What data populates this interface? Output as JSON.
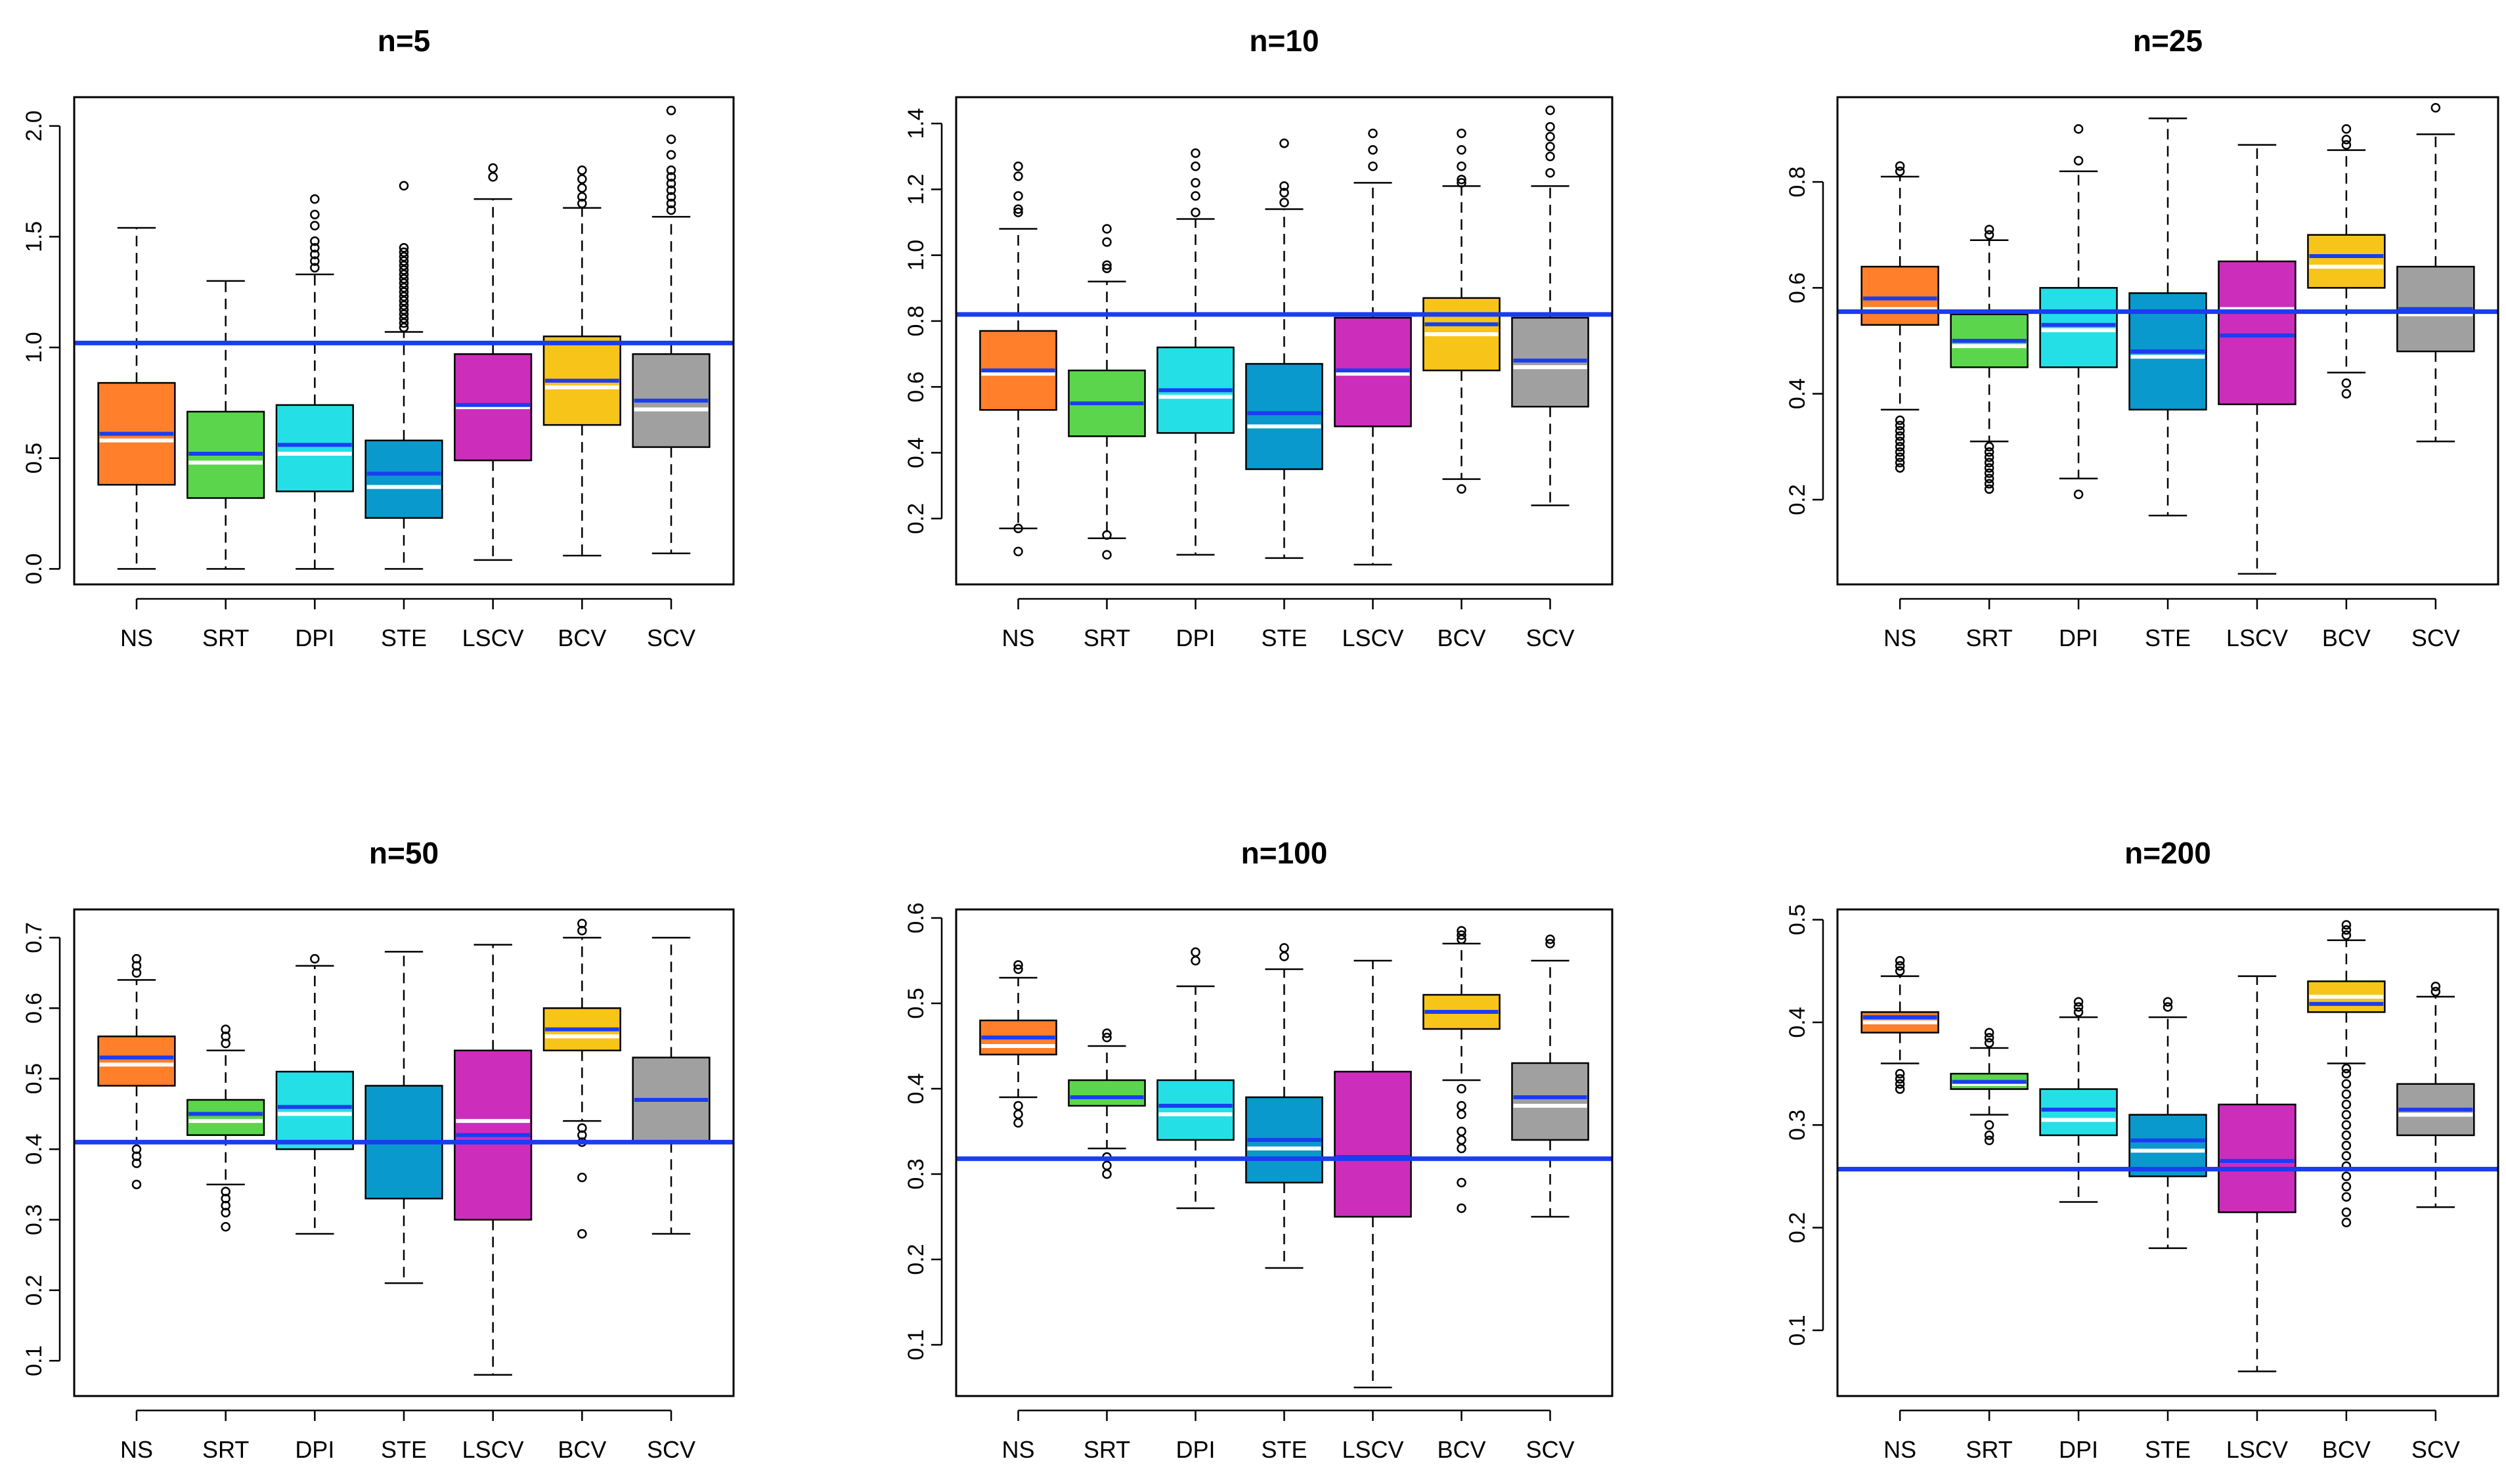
{
  "colors": {
    "NS": "#FF7F2A",
    "SRT": "#5BD64C",
    "DPI": "#24E0E6",
    "STE": "#0A99CC",
    "LSCV": "#CC2DBB",
    "BCV": "#F7C41A",
    "SCV": "#A0A0A0",
    "reference_line": "#1A3DF0",
    "mean_line": "#1A3DF0",
    "median_line": "#FFFFFF"
  },
  "chart_data": [
    {
      "type": "boxplot",
      "title": "n=5",
      "categories": [
        "NS",
        "SRT",
        "DPI",
        "STE",
        "LSCV",
        "BCV",
        "SCV"
      ],
      "ylim": [
        -0.07,
        2.13
      ],
      "yticks": [
        "0.0",
        "0.5",
        "1.0",
        "1.5",
        "2.0"
      ],
      "reference_line": 1.02,
      "boxes": [
        {
          "min": 0.0,
          "q1": 0.38,
          "median": 0.58,
          "mean": 0.61,
          "q3": 0.84,
          "max": 1.54,
          "outliers": []
        },
        {
          "min": 0.0,
          "q1": 0.32,
          "median": 0.48,
          "mean": 0.52,
          "q3": 0.71,
          "max": 1.3,
          "outliers": []
        },
        {
          "min": 0.0,
          "q1": 0.35,
          "median": 0.52,
          "mean": 0.56,
          "q3": 0.74,
          "max": 1.33,
          "outliers": [
            1.36,
            1.39,
            1.42,
            1.45,
            1.48,
            1.55,
            1.6,
            1.67
          ]
        },
        {
          "min": 0.0,
          "q1": 0.23,
          "median": 0.37,
          "mean": 0.43,
          "q3": 0.58,
          "max": 1.07,
          "outliers": [
            1.09,
            1.11,
            1.13,
            1.15,
            1.17,
            1.19,
            1.21,
            1.23,
            1.25,
            1.27,
            1.29,
            1.31,
            1.33,
            1.35,
            1.37,
            1.39,
            1.41,
            1.43,
            1.45,
            1.73
          ]
        },
        {
          "min": 0.04,
          "q1": 0.49,
          "median": 0.73,
          "mean": 0.74,
          "q3": 0.97,
          "max": 1.67,
          "outliers": [
            1.77,
            1.81
          ]
        },
        {
          "min": 0.06,
          "q1": 0.65,
          "median": 0.82,
          "mean": 0.85,
          "q3": 1.05,
          "max": 1.63,
          "outliers": [
            1.65,
            1.68,
            1.72,
            1.76,
            1.8
          ]
        },
        {
          "min": 0.07,
          "q1": 0.55,
          "median": 0.72,
          "mean": 0.76,
          "q3": 0.97,
          "max": 1.59,
          "outliers": [
            1.62,
            1.65,
            1.68,
            1.71,
            1.74,
            1.77,
            1.8,
            1.87,
            1.94,
            2.07
          ]
        }
      ]
    },
    {
      "type": "boxplot",
      "title": "n=10",
      "categories": [
        "NS",
        "SRT",
        "DPI",
        "STE",
        "LSCV",
        "BCV",
        "SCV"
      ],
      "ylim": [
        0.0,
        1.48
      ],
      "yticks": [
        "0.2",
        "0.4",
        "0.6",
        "0.8",
        "1.0",
        "1.2",
        "1.4"
      ],
      "reference_line": 0.82,
      "boxes": [
        {
          "min": 0.17,
          "q1": 0.53,
          "median": 0.64,
          "mean": 0.65,
          "q3": 0.77,
          "max": 1.08,
          "outliers": [
            0.1,
            0.17,
            1.13,
            1.14,
            1.18,
            1.24,
            1.27
          ]
        },
        {
          "min": 0.14,
          "q1": 0.45,
          "median": 0.55,
          "mean": 0.55,
          "q3": 0.65,
          "max": 0.92,
          "outliers": [
            0.09,
            0.15,
            0.96,
            0.97,
            1.04,
            1.08
          ]
        },
        {
          "min": 0.09,
          "q1": 0.46,
          "median": 0.57,
          "mean": 0.59,
          "q3": 0.72,
          "max": 1.11,
          "outliers": [
            1.13,
            1.18,
            1.22,
            1.27,
            1.31
          ]
        },
        {
          "min": 0.08,
          "q1": 0.35,
          "median": 0.48,
          "mean": 0.52,
          "q3": 0.67,
          "max": 1.14,
          "outliers": [
            1.16,
            1.19,
            1.21,
            1.34
          ]
        },
        {
          "min": 0.06,
          "q1": 0.48,
          "median": 0.64,
          "mean": 0.65,
          "q3": 0.81,
          "max": 1.22,
          "outliers": [
            1.27,
            1.32,
            1.37
          ]
        },
        {
          "min": 0.32,
          "q1": 0.65,
          "median": 0.76,
          "mean": 0.79,
          "q3": 0.87,
          "max": 1.21,
          "outliers": [
            0.29,
            1.22,
            1.23,
            1.27,
            1.32,
            1.37
          ]
        },
        {
          "min": 0.24,
          "q1": 0.54,
          "median": 0.66,
          "mean": 0.68,
          "q3": 0.81,
          "max": 1.21,
          "outliers": [
            1.25,
            1.3,
            1.33,
            1.36,
            1.39,
            1.44
          ]
        }
      ]
    },
    {
      "type": "boxplot",
      "title": "n=25",
      "categories": [
        "NS",
        "SRT",
        "DPI",
        "STE",
        "LSCV",
        "BCV",
        "SCV"
      ],
      "ylim": [
        0.04,
        0.96
      ],
      "yticks": [
        "0.2",
        "0.4",
        "0.6",
        "0.8"
      ],
      "reference_line": 0.555,
      "boxes": [
        {
          "min": 0.37,
          "q1": 0.53,
          "median": 0.56,
          "mean": 0.58,
          "q3": 0.64,
          "max": 0.81,
          "outliers": [
            0.26,
            0.27,
            0.28,
            0.29,
            0.3,
            0.31,
            0.32,
            0.33,
            0.34,
            0.35,
            0.82,
            0.83
          ]
        },
        {
          "min": 0.31,
          "q1": 0.45,
          "median": 0.49,
          "mean": 0.5,
          "q3": 0.55,
          "max": 0.69,
          "outliers": [
            0.22,
            0.23,
            0.24,
            0.25,
            0.26,
            0.27,
            0.28,
            0.29,
            0.3,
            0.7,
            0.71
          ]
        },
        {
          "min": 0.24,
          "q1": 0.45,
          "median": 0.52,
          "mean": 0.53,
          "q3": 0.6,
          "max": 0.82,
          "outliers": [
            0.21,
            0.84,
            0.9
          ]
        },
        {
          "min": 0.17,
          "q1": 0.37,
          "median": 0.47,
          "mean": 0.48,
          "q3": 0.59,
          "max": 0.92,
          "outliers": []
        },
        {
          "min": 0.06,
          "q1": 0.38,
          "median": 0.56,
          "mean": 0.51,
          "q3": 0.65,
          "max": 0.87,
          "outliers": []
        },
        {
          "min": 0.44,
          "q1": 0.6,
          "median": 0.64,
          "mean": 0.66,
          "q3": 0.7,
          "max": 0.86,
          "outliers": [
            0.4,
            0.42,
            0.87,
            0.88,
            0.9
          ]
        },
        {
          "min": 0.31,
          "q1": 0.48,
          "median": 0.55,
          "mean": 0.56,
          "q3": 0.64,
          "max": 0.89,
          "outliers": [
            0.94
          ]
        }
      ]
    },
    {
      "type": "boxplot",
      "title": "n=50",
      "categories": [
        "NS",
        "SRT",
        "DPI",
        "STE",
        "LSCV",
        "BCV",
        "SCV"
      ],
      "ylim": [
        0.05,
        0.74
      ],
      "yticks": [
        "0.1",
        "0.2",
        "0.3",
        "0.4",
        "0.5",
        "0.6",
        "0.7"
      ],
      "reference_line": 0.41,
      "boxes": [
        {
          "min": 0.41,
          "q1": 0.49,
          "median": 0.52,
          "mean": 0.53,
          "q3": 0.56,
          "max": 0.64,
          "outliers": [
            0.35,
            0.38,
            0.39,
            0.4,
            0.65,
            0.66,
            0.67
          ]
        },
        {
          "min": 0.35,
          "q1": 0.42,
          "median": 0.44,
          "mean": 0.45,
          "q3": 0.47,
          "max": 0.54,
          "outliers": [
            0.29,
            0.31,
            0.32,
            0.33,
            0.34,
            0.55,
            0.56,
            0.57
          ]
        },
        {
          "min": 0.28,
          "q1": 0.4,
          "median": 0.45,
          "mean": 0.46,
          "q3": 0.51,
          "max": 0.66,
          "outliers": [
            0.67
          ]
        },
        {
          "min": 0.21,
          "q1": 0.33,
          "median": 0.41,
          "mean": 0.41,
          "q3": 0.49,
          "max": 0.68,
          "outliers": []
        },
        {
          "min": 0.08,
          "q1": 0.3,
          "median": 0.44,
          "mean": 0.42,
          "q3": 0.54,
          "max": 0.69,
          "outliers": []
        },
        {
          "min": 0.44,
          "q1": 0.54,
          "median": 0.56,
          "mean": 0.57,
          "q3": 0.6,
          "max": 0.7,
          "outliers": [
            0.28,
            0.36,
            0.41,
            0.42,
            0.43,
            0.71,
            0.72
          ]
        },
        {
          "min": 0.28,
          "q1": 0.41,
          "median": 0.47,
          "mean": 0.47,
          "q3": 0.53,
          "max": 0.7,
          "outliers": []
        }
      ]
    },
    {
      "type": "boxplot",
      "title": "n=100",
      "categories": [
        "NS",
        "SRT",
        "DPI",
        "STE",
        "LSCV",
        "BCV",
        "SCV"
      ],
      "ylim": [
        0.04,
        0.61
      ],
      "yticks": [
        "0.1",
        "0.2",
        "0.3",
        "0.4",
        "0.5",
        "0.6"
      ],
      "reference_line": 0.318,
      "boxes": [
        {
          "min": 0.39,
          "q1": 0.44,
          "median": 0.45,
          "mean": 0.46,
          "q3": 0.48,
          "max": 0.53,
          "outliers": [
            0.36,
            0.37,
            0.38,
            0.54,
            0.545
          ]
        },
        {
          "min": 0.33,
          "q1": 0.38,
          "median": 0.39,
          "mean": 0.39,
          "q3": 0.41,
          "max": 0.45,
          "outliers": [
            0.3,
            0.31,
            0.32,
            0.46,
            0.465
          ]
        },
        {
          "min": 0.26,
          "q1": 0.34,
          "median": 0.37,
          "mean": 0.38,
          "q3": 0.41,
          "max": 0.52,
          "outliers": [
            0.55,
            0.56
          ]
        },
        {
          "min": 0.19,
          "q1": 0.29,
          "median": 0.33,
          "mean": 0.34,
          "q3": 0.39,
          "max": 0.54,
          "outliers": [
            0.555,
            0.565
          ]
        },
        {
          "min": 0.05,
          "q1": 0.25,
          "median": 0.32,
          "mean": 0.32,
          "q3": 0.42,
          "max": 0.55,
          "outliers": []
        },
        {
          "min": 0.41,
          "q1": 0.47,
          "median": 0.49,
          "mean": 0.49,
          "q3": 0.51,
          "max": 0.57,
          "outliers": [
            0.26,
            0.29,
            0.33,
            0.34,
            0.35,
            0.37,
            0.38,
            0.4,
            0.575,
            0.58,
            0.585
          ]
        },
        {
          "min": 0.25,
          "q1": 0.34,
          "median": 0.38,
          "mean": 0.39,
          "q3": 0.43,
          "max": 0.55,
          "outliers": [
            0.57,
            0.575
          ]
        }
      ]
    },
    {
      "type": "boxplot",
      "title": "n=200",
      "categories": [
        "NS",
        "SRT",
        "DPI",
        "STE",
        "LSCV",
        "BCV",
        "SCV"
      ],
      "ylim": [
        0.036,
        0.51
      ],
      "yticks": [
        "0.1",
        "0.2",
        "0.3",
        "0.4",
        "0.5"
      ],
      "reference_line": 0.257,
      "boxes": [
        {
          "min": 0.36,
          "q1": 0.39,
          "median": 0.4,
          "mean": 0.405,
          "q3": 0.41,
          "max": 0.445,
          "outliers": [
            0.335,
            0.34,
            0.345,
            0.35,
            0.45,
            0.455,
            0.46
          ]
        },
        {
          "min": 0.31,
          "q1": 0.335,
          "median": 0.34,
          "mean": 0.342,
          "q3": 0.35,
          "max": 0.375,
          "outliers": [
            0.285,
            0.29,
            0.3,
            0.38,
            0.385,
            0.39
          ]
        },
        {
          "min": 0.225,
          "q1": 0.29,
          "median": 0.305,
          "mean": 0.315,
          "q3": 0.335,
          "max": 0.405,
          "outliers": [
            0.41,
            0.415,
            0.42
          ]
        },
        {
          "min": 0.18,
          "q1": 0.25,
          "median": 0.275,
          "mean": 0.285,
          "q3": 0.31,
          "max": 0.405,
          "outliers": [
            0.415,
            0.42
          ]
        },
        {
          "min": 0.06,
          "q1": 0.215,
          "median": 0.265,
          "mean": 0.265,
          "q3": 0.32,
          "max": 0.445,
          "outliers": []
        },
        {
          "min": 0.36,
          "q1": 0.41,
          "median": 0.425,
          "mean": 0.418,
          "q3": 0.44,
          "max": 0.48,
          "outliers": [
            0.205,
            0.215,
            0.23,
            0.24,
            0.25,
            0.26,
            0.27,
            0.28,
            0.29,
            0.3,
            0.31,
            0.32,
            0.33,
            0.34,
            0.35,
            0.355,
            0.485,
            0.49,
            0.495
          ]
        },
        {
          "min": 0.22,
          "q1": 0.29,
          "median": 0.31,
          "mean": 0.315,
          "q3": 0.34,
          "max": 0.425,
          "outliers": [
            0.43,
            0.435
          ]
        }
      ]
    }
  ]
}
